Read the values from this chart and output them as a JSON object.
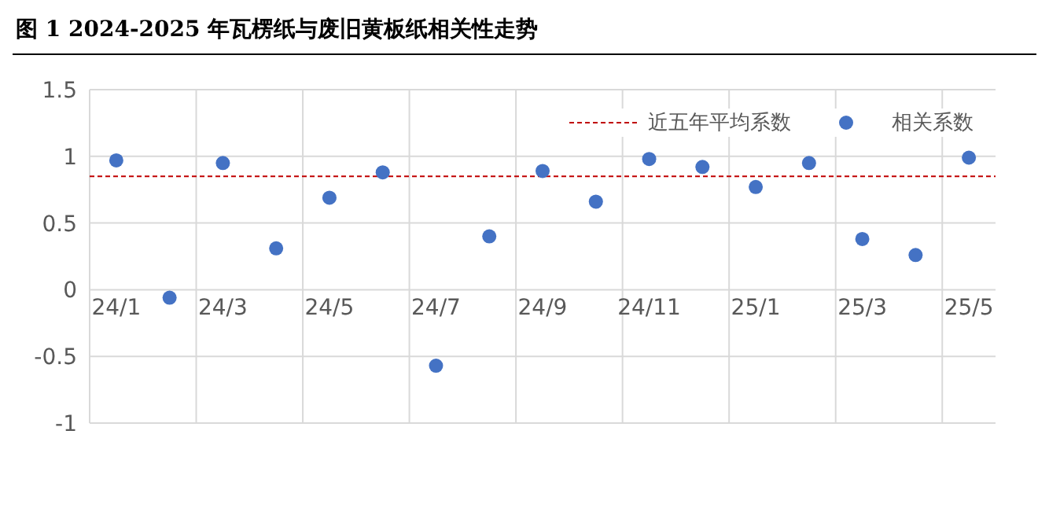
{
  "chart_data": {
    "type": "scatter",
    "title": "图 1  2024-2025 年瓦楞纸与废旧黄板纸相关性走势",
    "categories": [
      "24/1",
      null,
      "24/3",
      null,
      "24/5",
      null,
      "24/7",
      null,
      "24/9",
      null,
      "24/11",
      null,
      "25/1",
      null,
      "25/3",
      null,
      "25/5"
    ],
    "series": [
      {
        "name": "相关系数",
        "color": "#4472c4",
        "values": [
          0.97,
          -0.06,
          0.95,
          0.31,
          0.69,
          0.88,
          -0.57,
          0.4,
          0.89,
          0.66,
          0.98,
          0.92,
          0.77,
          0.95,
          0.38,
          0.26,
          0.99
        ]
      }
    ],
    "ref_lines": [
      {
        "axis": "y",
        "value": 0.85,
        "label": "近五年平均系数",
        "color": "#c00000",
        "line_style": "dashed"
      }
    ],
    "ylim": [
      -1,
      1.5
    ],
    "yticks": [
      -1,
      -0.5,
      0,
      0.5,
      1,
      1.5
    ],
    "grid": true,
    "legend": "top right",
    "marker": "circle"
  }
}
